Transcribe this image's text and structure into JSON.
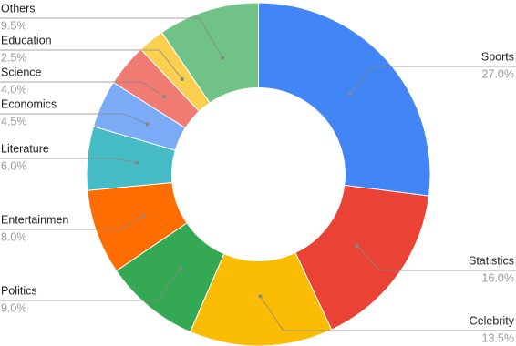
{
  "chart_data": {
    "type": "donut",
    "categories": [
      "Sports",
      "Statistics",
      "Celebrity",
      "Politics",
      "Entertainmen",
      "Literature",
      "Economics",
      "Science",
      "Education",
      "Others"
    ],
    "values": [
      27,
      16,
      13.5,
      9,
      8,
      6,
      4.5,
      4,
      2.5,
      9.5
    ],
    "value_labels": [
      "27.0%",
      "16.0%",
      "13.5%",
      "9.0%",
      "8.0%",
      "6.0%",
      "4.5%",
      "4.0%",
      "2.5%",
      "9.5%"
    ],
    "colors": [
      "#4285f4",
      "#ea4335",
      "#fbbc04",
      "#34a853",
      "#ff6d01",
      "#46bdc6",
      "#7baaf7",
      "#f07b72",
      "#fcd04f",
      "#71c287"
    ]
  }
}
